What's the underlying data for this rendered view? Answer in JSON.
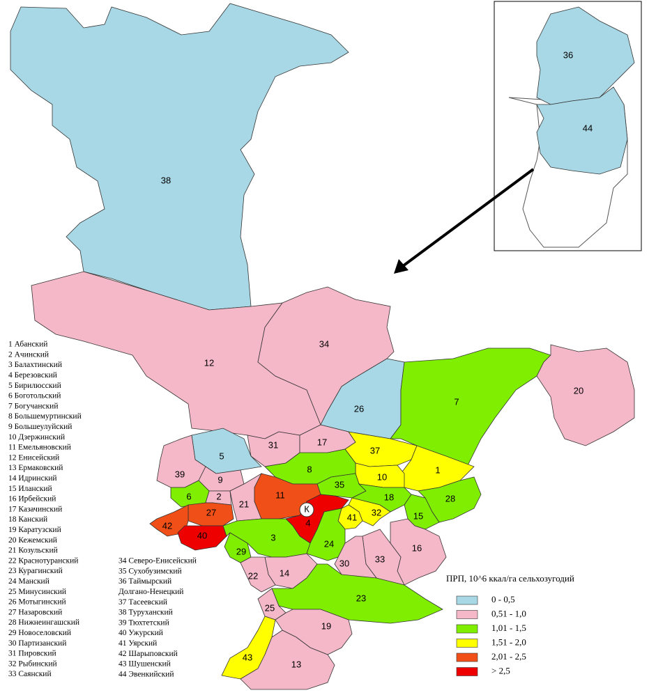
{
  "regions": [
    {
      "label": "38",
      "color": "#a8d8e6"
    },
    {
      "label": "12",
      "color": "#f5b8c8"
    },
    {
      "label": "34",
      "color": "#f5b8c8"
    },
    {
      "label": "26",
      "color": "#a8d8e6"
    },
    {
      "label": "7",
      "color": "#80ee00"
    },
    {
      "label": "20",
      "color": "#f5b8c8"
    },
    {
      "label": "31",
      "color": "#f5b8c8"
    },
    {
      "label": "17",
      "color": "#f5b8c8"
    },
    {
      "label": "37",
      "color": "#ffff00"
    },
    {
      "label": "1",
      "color": "#ffff00"
    },
    {
      "label": "10",
      "color": "#ffff00"
    },
    {
      "label": "8",
      "color": "#80ee00"
    },
    {
      "label": "35",
      "color": "#80ee00"
    },
    {
      "label": "5",
      "color": "#a8d8e6"
    },
    {
      "label": "39",
      "color": "#f5b8c8"
    },
    {
      "label": "9",
      "color": "#f5b8c8"
    },
    {
      "label": "6",
      "color": "#80ee00"
    },
    {
      "label": "2",
      "color": "#f5b8c8"
    },
    {
      "label": "21",
      "color": "#f5b8c8"
    },
    {
      "label": "11",
      "color": "#f05018"
    },
    {
      "label": "4",
      "color": "#ee0000"
    },
    {
      "label": "18",
      "color": "#80ee00"
    },
    {
      "label": "28",
      "color": "#80ee00"
    },
    {
      "label": "15",
      "color": "#80ee00"
    },
    {
      "label": "32",
      "color": "#ffff00"
    },
    {
      "label": "41",
      "color": "#ffff00"
    },
    {
      "label": "27",
      "color": "#f05018"
    },
    {
      "label": "42",
      "color": "#f05018"
    },
    {
      "label": "40",
      "color": "#ee0000"
    },
    {
      "label": "3",
      "color": "#80ee00"
    },
    {
      "label": "29",
      "color": "#80ee00"
    },
    {
      "label": "24",
      "color": "#80ee00"
    },
    {
      "label": "16",
      "color": "#f5b8c8"
    },
    {
      "label": "33",
      "color": "#f5b8c8"
    },
    {
      "label": "30",
      "color": "#f5b8c8"
    },
    {
      "label": "14",
      "color": "#f5b8c8"
    },
    {
      "label": "22",
      "color": "#f5b8c8"
    },
    {
      "label": "23",
      "color": "#80ee00"
    },
    {
      "label": "25",
      "color": "#f5b8c8"
    },
    {
      "label": "19",
      "color": "#f5b8c8"
    },
    {
      "label": "43",
      "color": "#ffff00"
    },
    {
      "label": "13",
      "color": "#f5b8c8"
    }
  ],
  "inset_regions": [
    {
      "label": "36",
      "color": "#a8d8e6"
    },
    {
      "label": "44",
      "color": "#a8d8e6"
    }
  ],
  "marker": "К",
  "legend": {
    "title": "ПРП, 10^6 ккал/га сельхозугодий",
    "items": [
      {
        "label": "0 - 0,5",
        "color": "#a8d8e6"
      },
      {
        "label": "0,51 - 1,0",
        "color": "#f5b8c8"
      },
      {
        "label": "1,01 - 1,5",
        "color": "#80ee00"
      },
      {
        "label": "1,51 - 2,0",
        "color": "#ffff00"
      },
      {
        "label": "2,01 - 2,5",
        "color": "#f05018"
      },
      {
        "label": "> 2,5",
        "color": "#ee0000"
      }
    ]
  },
  "district_list": {
    "column1": [
      "1 Абанский",
      "2 Ачинский",
      "3 Балахтинский",
      "4 Березовский",
      "5 Бирилюсский",
      "6 Боготольский",
      "7 Богучанский",
      "8 Большемуртинский",
      "9 Большеулуйский",
      "10 Дзержинский",
      "11 Емельяновский",
      "12 Енисейский",
      "13 Ермаковский",
      "14 Идринский",
      "15 Иланский",
      "16 Ирбейский",
      "17 Казачинский",
      "18 Канский",
      "19 Каратузский",
      "20 Кежемский",
      "21 Козульский",
      "22 Краснотуранский",
      "23 Курагинский",
      "24 Манский",
      "25 Минусинский",
      "26 Мотыгинский",
      "27 Назаровский",
      "28 Нижнеингашский",
      "29 Новоселовский",
      "30 Партизанский",
      "31 Пировский",
      "32 Рыбинский",
      "33 Саянский"
    ],
    "column2": [
      "34 Северо-Енисейский",
      "35 Сухобузимский",
      "36 Таймырский",
      "Долгано-Ненецкий",
      "37 Тасеевский",
      "38 Туруханский",
      "39 Тюхтетский",
      "40 Ужурский",
      "41 Уярский",
      "42 Шарыповский",
      "43 Шушенский",
      "44 Эвенкийский"
    ]
  }
}
